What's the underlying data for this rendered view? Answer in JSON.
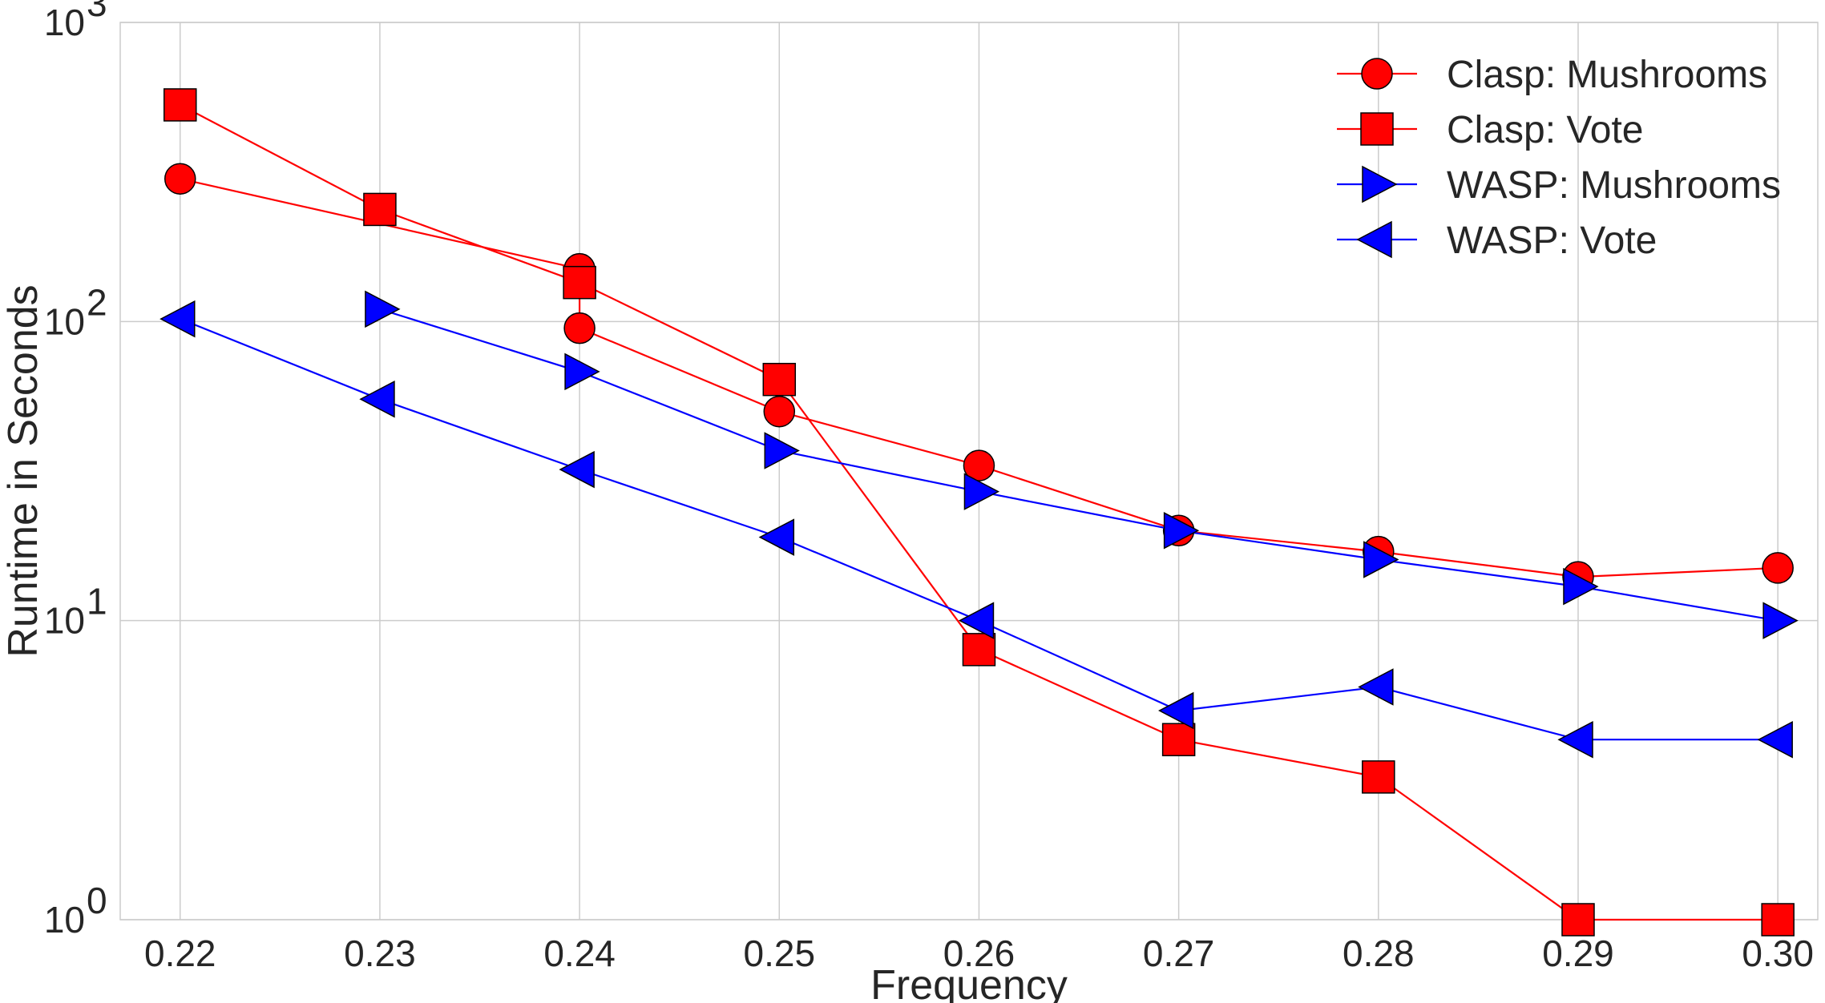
{
  "chart_data": {
    "type": "line",
    "title": "",
    "xlabel": "Frequency",
    "ylabel": "Runtime in Seconds",
    "y_scale": "log",
    "xlim": [
      0.217,
      0.302
    ],
    "ylim": [
      1,
      1000
    ],
    "x_ticks": [
      "0.22",
      "0.23",
      "0.24",
      "0.25",
      "0.26",
      "0.27",
      "0.28",
      "0.29",
      "0.30"
    ],
    "y_ticks": [
      {
        "value": 1,
        "base": "10",
        "exp": "0"
      },
      {
        "value": 10,
        "base": "10",
        "exp": "1"
      },
      {
        "value": 100,
        "base": "10",
        "exp": "2"
      },
      {
        "value": 1000,
        "base": "10",
        "exp": "3"
      }
    ],
    "grid": true,
    "legend_position": "top-right",
    "series": [
      {
        "name": "Clasp: Mushrooms",
        "color": "#ff0000",
        "marker": "circle",
        "points": [
          {
            "x": 0.22,
            "y": 300
          },
          {
            "x": 0.24,
            "y": 150
          },
          {
            "x": 0.24,
            "y": 95
          },
          {
            "x": 0.25,
            "y": 50
          },
          {
            "x": 0.26,
            "y": 33
          },
          {
            "x": 0.27,
            "y": 20
          },
          {
            "x": 0.28,
            "y": 17
          },
          {
            "x": 0.29,
            "y": 14
          },
          {
            "x": 0.3,
            "y": 15
          }
        ]
      },
      {
        "name": "Clasp: Vote",
        "color": "#ff0000",
        "marker": "square",
        "points": [
          {
            "x": 0.22,
            "y": 530
          },
          {
            "x": 0.23,
            "y": 237
          },
          {
            "x": 0.24,
            "y": 135
          },
          {
            "x": 0.25,
            "y": 64
          },
          {
            "x": 0.26,
            "y": 8
          },
          {
            "x": 0.27,
            "y": 4
          },
          {
            "x": 0.28,
            "y": 3
          },
          {
            "x": 0.29,
            "y": 1
          },
          {
            "x": 0.3,
            "y": 1
          }
        ]
      },
      {
        "name": "WASP: Mushrooms",
        "color": "#0000ff",
        "marker": "triangle-right",
        "points": [
          {
            "x": 0.23,
            "y": 110
          },
          {
            "x": 0.24,
            "y": 68
          },
          {
            "x": 0.25,
            "y": 37
          },
          {
            "x": 0.26,
            "y": 27
          },
          {
            "x": 0.27,
            "y": 20
          },
          {
            "x": 0.28,
            "y": 16
          },
          {
            "x": 0.29,
            "y": 13
          },
          {
            "x": 0.3,
            "y": 10
          }
        ]
      },
      {
        "name": "WASP: Vote",
        "color": "#0000ff",
        "marker": "triangle-left",
        "points": [
          {
            "x": 0.22,
            "y": 102
          },
          {
            "x": 0.23,
            "y": 55
          },
          {
            "x": 0.24,
            "y": 32
          },
          {
            "x": 0.25,
            "y": 19
          },
          {
            "x": 0.26,
            "y": 10
          },
          {
            "x": 0.27,
            "y": 5
          },
          {
            "x": 0.28,
            "y": 6
          },
          {
            "x": 0.29,
            "y": 4
          },
          {
            "x": 0.3,
            "y": 4
          }
        ]
      }
    ]
  }
}
